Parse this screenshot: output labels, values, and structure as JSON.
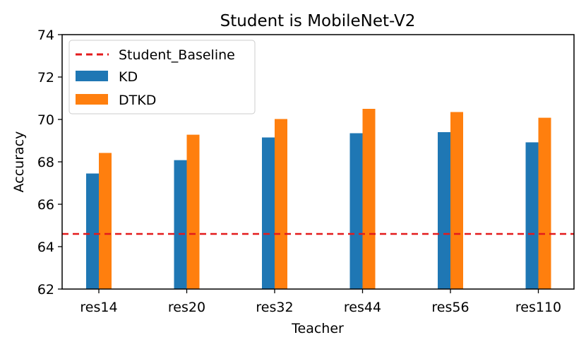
{
  "chart_data": {
    "type": "bar",
    "title": "Student is MobileNet-V2",
    "xlabel": "Teacher",
    "ylabel": "Accuracy",
    "ylim": [
      62,
      74
    ],
    "yticks": [
      62,
      64,
      66,
      68,
      70,
      72,
      74
    ],
    "categories": [
      "res14",
      "res20",
      "res32",
      "res44",
      "res56",
      "res110"
    ],
    "series": [
      {
        "name": "KD",
        "color": "#1f77b4",
        "values": [
          67.45,
          68.08,
          69.15,
          69.35,
          69.4,
          68.92
        ]
      },
      {
        "name": "DTKD",
        "color": "#ff7f0e",
        "values": [
          68.42,
          69.28,
          70.02,
          70.5,
          70.35,
          70.08
        ]
      }
    ],
    "baseline": {
      "name": "Student_Baseline",
      "value": 64.6,
      "color": "#e31a1c",
      "style": "dashed"
    },
    "legend": {
      "position": "top-left",
      "items": [
        "Student_Baseline",
        "KD",
        "DTKD"
      ]
    },
    "grid": false
  }
}
